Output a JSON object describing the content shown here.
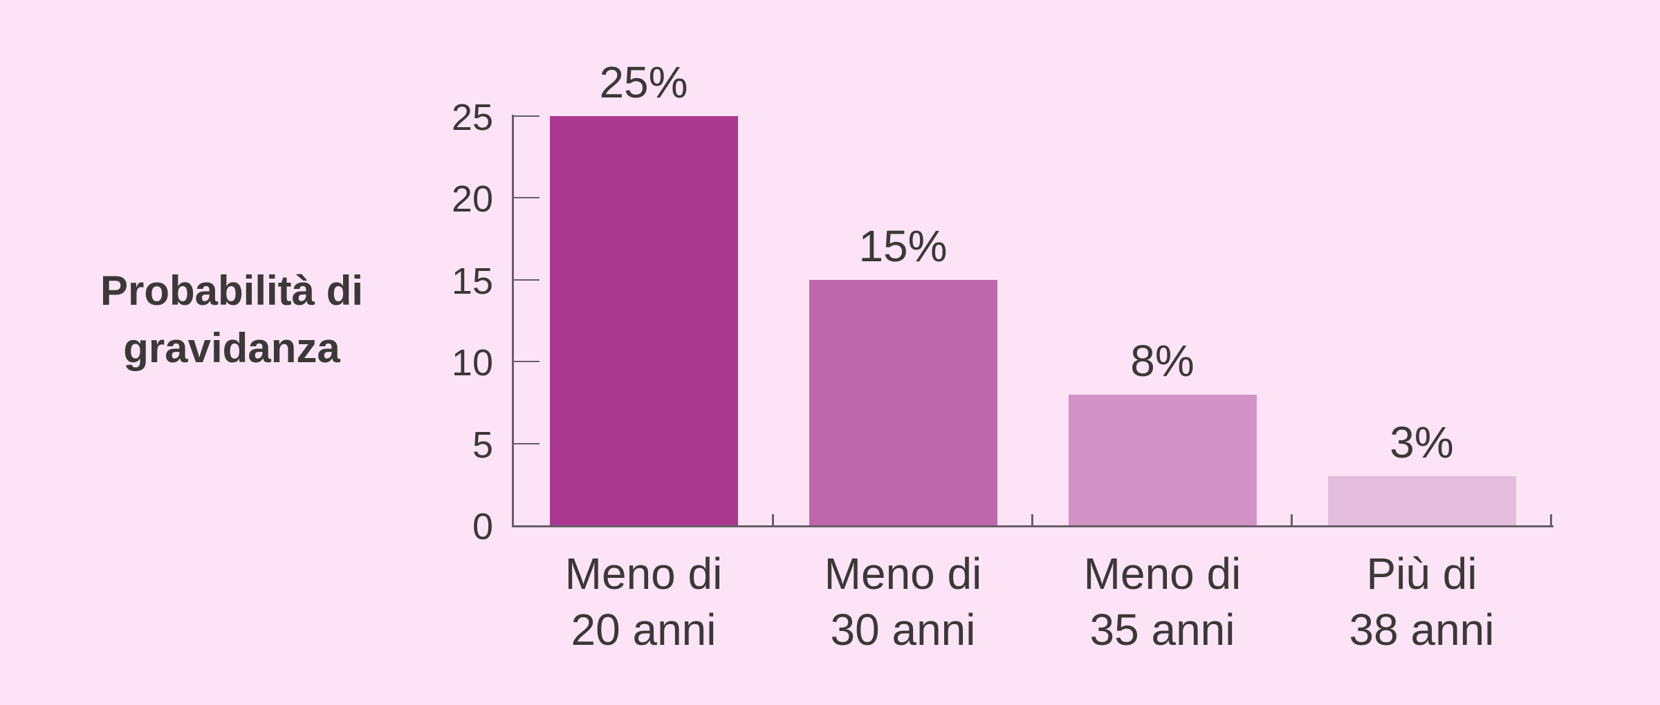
{
  "chart_data": {
    "type": "bar",
    "title": "",
    "ylabel_lines": [
      "Probabilità di",
      "gravidanza"
    ],
    "ylabel": "Probabilità di gravidanza",
    "categories": [
      [
        "Meno di",
        "20 anni"
      ],
      [
        "Meno di",
        "30 anni"
      ],
      [
        "Meno di",
        "35 anni"
      ],
      [
        "Più di",
        "38 anni"
      ]
    ],
    "values": [
      25,
      15,
      8,
      3
    ],
    "value_labels": [
      "25%",
      "15%",
      "8%",
      "3%"
    ],
    "y_ticks": [
      0,
      5,
      10,
      15,
      20,
      25
    ],
    "ylim": [
      0,
      25
    ],
    "grid": false,
    "legend": "none",
    "bar_colors": [
      "#a9388e",
      "#bf67ab",
      "#d392c5",
      "#e4bddc"
    ],
    "background_color": "#fce4f6",
    "axis_color": "#675d68",
    "text_color": "#3b3838"
  }
}
